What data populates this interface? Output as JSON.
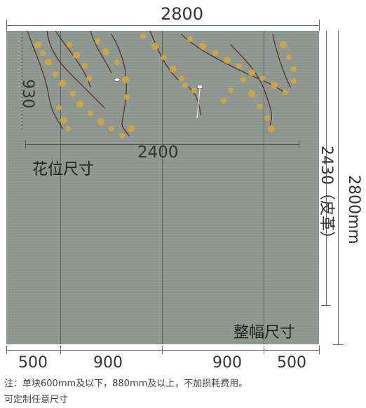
{
  "dimensions": {
    "total_width": "2800",
    "flower_height": "930",
    "flower_width": "2400",
    "flower_label": "花位尺寸",
    "panel_height": "2430（皮革）",
    "total_height": "2800mm",
    "whole_label": "整幅尺寸",
    "segments": [
      "500",
      "900",
      "900",
      "500"
    ]
  },
  "notes": {
    "line1": "注：单块600mm及以下，880mm及以上，不加损耗费用。",
    "line2": "可定制任意尺寸"
  },
  "colors": {
    "wall": "#8e9791",
    "seam": "#4a524d",
    "leaf": "#d1a93a",
    "branch": "#5a3b2a"
  }
}
